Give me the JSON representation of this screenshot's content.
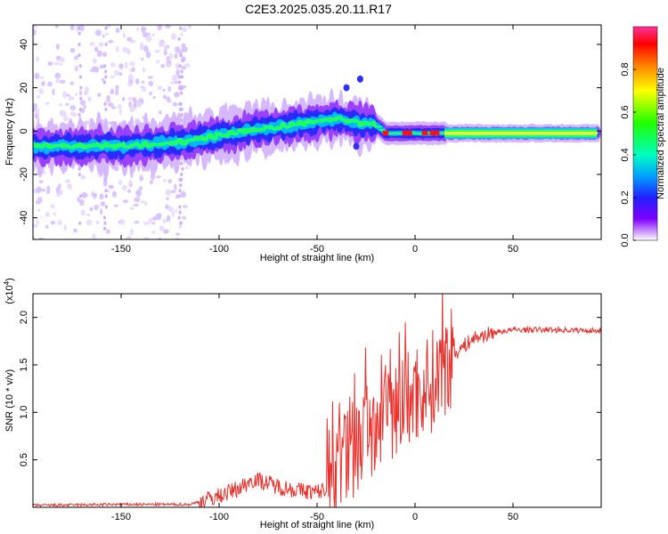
{
  "title": "C2E3.2025.035.20.11.R17",
  "chart_data": [
    {
      "type": "heatmap",
      "xlabel": "Height of straight line (km)",
      "ylabel": "Frequency (Hz)",
      "xlim": [
        -195,
        95
      ],
      "ylim": [
        -50,
        49
      ],
      "xticks": [
        -150,
        -100,
        -50,
        0,
        50
      ],
      "yticks": [
        -40,
        -20,
        0,
        20,
        40
      ],
      "colorbar": {
        "label": "Normalized spectral amplitude",
        "range": [
          0,
          1
        ],
        "ticks": [
          0.0,
          0.2,
          0.4,
          0.6,
          0.8
        ]
      },
      "ridge": [
        {
          "x": -195,
          "freq": -7
        },
        {
          "x": -150,
          "freq": -7
        },
        {
          "x": -120,
          "freq": -5
        },
        {
          "x": -100,
          "freq": -2
        },
        {
          "x": -80,
          "freq": 1
        },
        {
          "x": -60,
          "freq": 3
        },
        {
          "x": -40,
          "freq": 6
        },
        {
          "x": -30,
          "freq": 4
        },
        {
          "x": -20,
          "freq": 3
        },
        {
          "x": -15,
          "freq": -1
        },
        {
          "x": 0,
          "freq": -1
        },
        {
          "x": 15,
          "freq": -1
        },
        {
          "x": 50,
          "freq": -1
        },
        {
          "x": 95,
          "freq": -1
        }
      ]
    },
    {
      "type": "line",
      "xlabel": "Height of straight line (km)",
      "ylabel": "SNR (10 * v/v)",
      "y_multiplier": "(x10^4)",
      "xlim": [
        -195,
        95
      ],
      "ylim": [
        0,
        2.25
      ],
      "xticks": [
        -150,
        -100,
        -50,
        0,
        50
      ],
      "yticks": [
        0.5,
        1.0,
        1.5,
        2.0
      ],
      "series": [
        {
          "color": "#e8312c",
          "points": [
            {
              "x": -195,
              "y": 0.02
            },
            {
              "x": -150,
              "y": 0.03
            },
            {
              "x": -115,
              "y": 0.03
            },
            {
              "x": -100,
              "y": 0.12
            },
            {
              "x": -90,
              "y": 0.2
            },
            {
              "x": -82,
              "y": 0.3
            },
            {
              "x": -70,
              "y": 0.22
            },
            {
              "x": -60,
              "y": 0.18
            },
            {
              "x": -50,
              "y": 0.16
            },
            {
              "x": -42,
              "y": 0.22
            },
            {
              "x": -38,
              "y": 0.45
            },
            {
              "x": -30,
              "y": 0.65
            },
            {
              "x": -25,
              "y": 0.8
            },
            {
              "x": -15,
              "y": 0.95
            },
            {
              "x": -8,
              "y": 1.05
            },
            {
              "x": 0,
              "y": 1.2
            },
            {
              "x": 10,
              "y": 1.35
            },
            {
              "x": 20,
              "y": 1.62
            },
            {
              "x": 30,
              "y": 1.78
            },
            {
              "x": 40,
              "y": 1.84
            },
            {
              "x": 50,
              "y": 1.87
            },
            {
              "x": 70,
              "y": 1.87
            },
            {
              "x": 95,
              "y": 1.86
            }
          ]
        }
      ]
    }
  ]
}
